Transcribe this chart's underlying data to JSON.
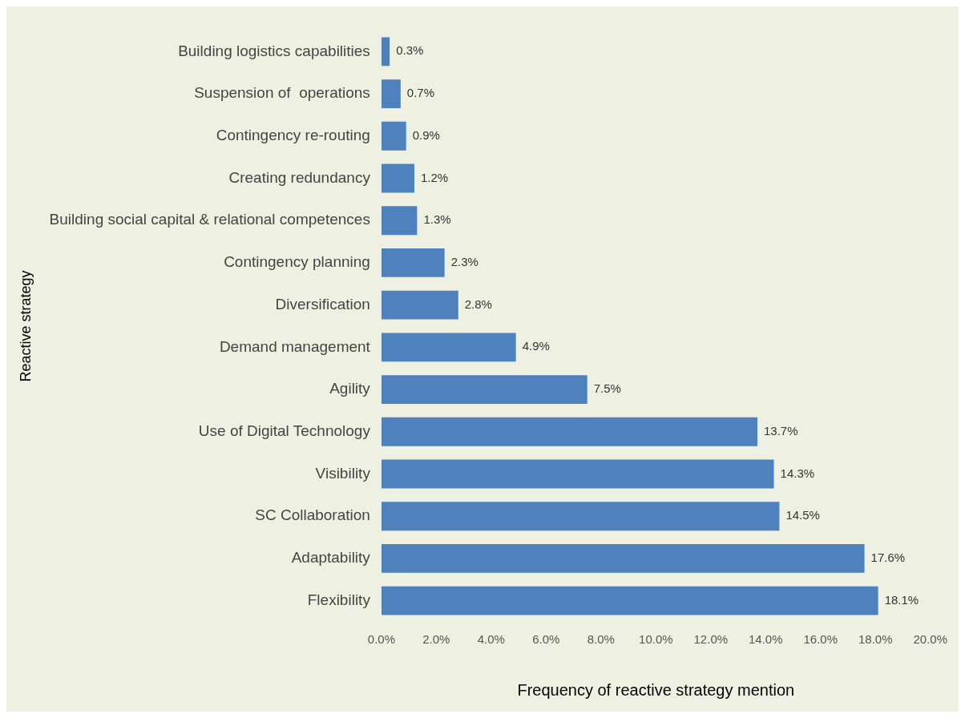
{
  "chart_data": {
    "type": "bar",
    "orientation": "horizontal",
    "xlabel": "Frequency of reactive strategy mention",
    "ylabel": "Reactive strategy",
    "categories": [
      "Building logistics capabilities",
      "Suspension of  operations",
      "Contingency re-routing",
      "Creating redundancy",
      "Building social capital & relational competences",
      "Contingency planning",
      "Diversification",
      "Demand management",
      "Agility",
      "Use of Digital Technology",
      "Visibility",
      "SC Collaboration",
      "Adaptability",
      "Flexibility"
    ],
    "values": [
      0.3,
      0.7,
      0.9,
      1.2,
      1.3,
      2.3,
      2.8,
      4.9,
      7.5,
      13.7,
      14.3,
      14.5,
      17.6,
      18.1
    ],
    "value_labels": [
      "0.3%",
      "0.7%",
      "0.9%",
      "1.2%",
      "1.3%",
      "2.3%",
      "2.8%",
      "4.9%",
      "7.5%",
      "13.7%",
      "14.3%",
      "14.5%",
      "17.6%",
      "18.1%"
    ],
    "color": "#4f81bd",
    "xlim": [
      0,
      20
    ],
    "xticks": [
      {
        "value": 0,
        "label": "0.0%"
      },
      {
        "value": 2,
        "label": "2.0%"
      },
      {
        "value": 4,
        "label": "4.0%"
      },
      {
        "value": 6,
        "label": "6.0%"
      },
      {
        "value": 8,
        "label": "8.0%"
      },
      {
        "value": 10,
        "label": "10.0%"
      },
      {
        "value": 12,
        "label": "12.0%"
      },
      {
        "value": 14,
        "label": "14.0%"
      },
      {
        "value": 16,
        "label": "16.0%"
      },
      {
        "value": 18,
        "label": "18.0%"
      },
      {
        "value": 20,
        "label": "20.0%"
      }
    ],
    "grid": false,
    "legend": false
  }
}
